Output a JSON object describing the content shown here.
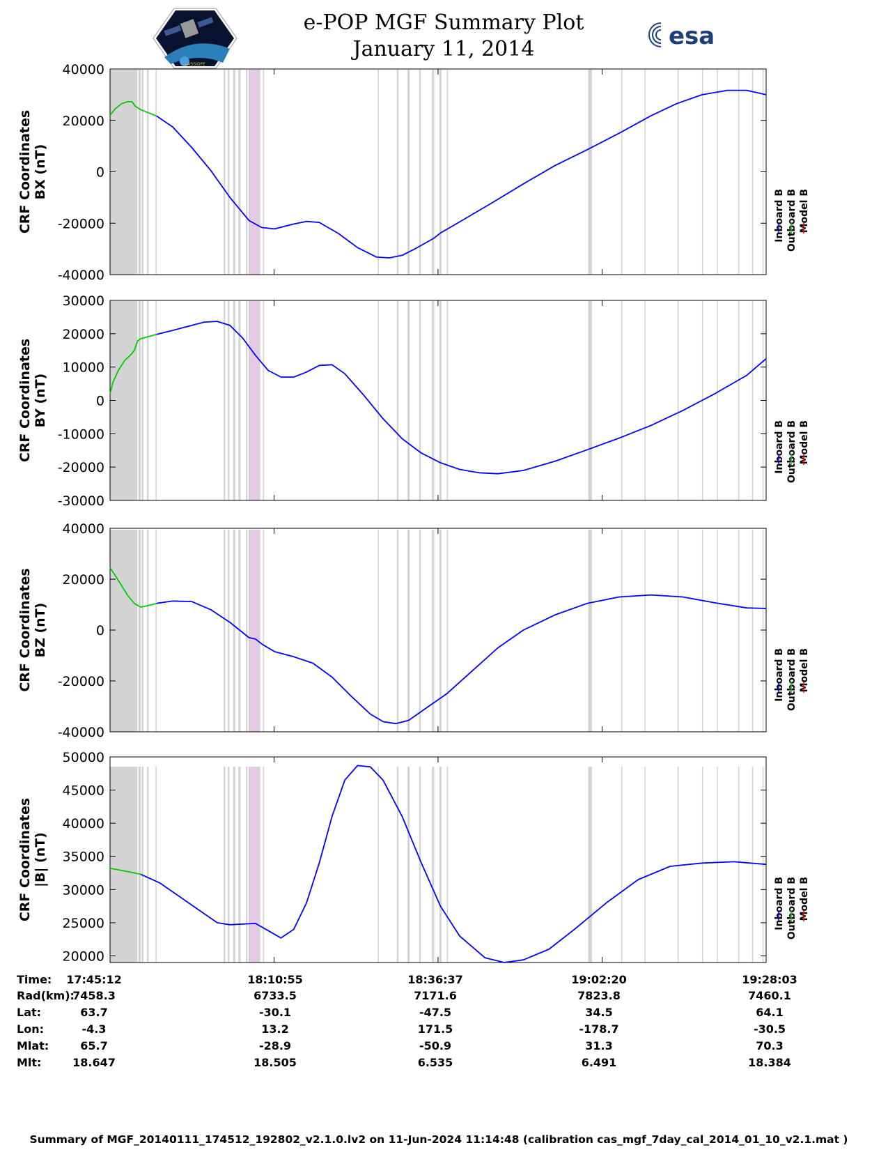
{
  "title": "e-POP MGF Summary Plot",
  "subtitle": "January 11, 2014",
  "logo_left_text": "CASSIOPE",
  "logo_right_text": "esa",
  "footer": "Summary of MGF_20140111_174512_192802_v2.1.0.lv2 on 11-Jun-2024 11:14:48 (calibration cas_mgf_7day_cal_2014_01_10_v2.1.mat )",
  "legend": [
    {
      "label": "Inboard B",
      "color": "#0000ff"
    },
    {
      "label": "Outboard B",
      "color": "#00cc00"
    },
    {
      "label": "Model B",
      "color": "#ff0000"
    }
  ],
  "colors": {
    "inboard": "#0000ff",
    "outboard": "#00cc00",
    "model": "#ff0000",
    "shade_gray": "#d3d3d3",
    "shade_pink": "#e8c8e8"
  },
  "table": {
    "row_labels": [
      "Time:",
      "Rad(km):",
      "Lat:",
      "Lon:",
      "Mlat:",
      "Mlt:"
    ],
    "columns": [
      [
        "17:45:12",
        "7458.3",
        "63.7",
        "-4.3",
        "65.7",
        "18.647"
      ],
      [
        "18:10:55",
        "6733.5",
        "-30.1",
        "13.2",
        "-28.9",
        "18.505"
      ],
      [
        "18:36:37",
        "7171.6",
        "-47.5",
        "171.5",
        "-50.9",
        "6.535"
      ],
      [
        "19:02:20",
        "7823.8",
        "34.5",
        "-178.7",
        "31.3",
        "6.491"
      ],
      [
        "19:28:03",
        "7460.1",
        "64.1",
        "-30.5",
        "70.3",
        "18.384"
      ]
    ]
  },
  "chart_data": {
    "type": "line",
    "x_unit": "time",
    "x_range": [
      "17:45:12",
      "19:28:03"
    ],
    "x_ticks": [
      "17:45:12",
      "18:10:55",
      "18:36:37",
      "19:02:20",
      "19:28:03"
    ],
    "shaded_intervals_gray": [
      [
        "17:45:12",
        "17:49:30"
      ],
      [
        "17:49:40",
        "17:50:00"
      ],
      [
        "17:50:10",
        "17:50:25"
      ],
      [
        "17:51:00",
        "17:51:15"
      ],
      [
        "17:52:20",
        "17:52:30"
      ],
      [
        "18:03:00",
        "18:03:15"
      ],
      [
        "18:03:40",
        "18:03:55"
      ],
      [
        "18:04:30",
        "18:04:50"
      ],
      [
        "18:05:20",
        "18:05:40"
      ],
      [
        "18:06:30",
        "18:06:45"
      ],
      [
        "18:07:50",
        "18:08:00"
      ],
      [
        "18:09:10",
        "18:09:20"
      ],
      [
        "18:27:10",
        "18:27:20"
      ],
      [
        "18:30:10",
        "18:30:25"
      ],
      [
        "18:31:50",
        "18:32:10"
      ],
      [
        "18:33:40",
        "18:33:55"
      ],
      [
        "18:35:40",
        "18:36:00"
      ],
      [
        "18:36:50",
        "18:37:10"
      ],
      [
        "18:38:00",
        "18:38:10"
      ],
      [
        "19:00:10",
        "19:00:45"
      ],
      [
        "19:05:20",
        "19:05:30"
      ],
      [
        "19:09:00",
        "19:09:10"
      ],
      [
        "19:14:10",
        "19:14:20"
      ],
      [
        "19:18:00",
        "19:18:10"
      ],
      [
        "19:20:20",
        "19:20:30"
      ],
      [
        "19:23:40",
        "19:23:50"
      ],
      [
        "19:25:50",
        "19:26:00"
      ],
      [
        "19:27:30",
        "19:27:40"
      ]
    ],
    "shaded_intervals_pink": [
      [
        "18:06:55",
        "18:08:45"
      ]
    ],
    "panels": [
      {
        "ylabel": "CRF Coordinates\nBX (nT)",
        "ylim": [
          -40000,
          40000
        ],
        "yticks": [
          -40000,
          -20000,
          0,
          20000,
          40000
        ],
        "series": [
          {
            "name": "Outboard B",
            "color": "#00cc00",
            "points": [
              [
                "17:45:12",
                22000
              ],
              [
                "17:46:00",
                24500
              ],
              [
                "17:47:00",
                26500
              ],
              [
                "17:48:00",
                27300
              ],
              [
                "17:48:40",
                27200
              ],
              [
                "17:49:10",
                25500
              ],
              [
                "17:50:00",
                24200
              ],
              [
                "17:51:00",
                23200
              ],
              [
                "17:52:30",
                21700
              ]
            ]
          },
          {
            "name": "Inboard B",
            "color": "#0000ff",
            "points": [
              [
                "17:52:30",
                21700
              ],
              [
                "17:55:00",
                17500
              ],
              [
                "17:58:00",
                9500
              ],
              [
                "18:01:00",
                500
              ],
              [
                "18:04:00",
                -10000
              ],
              [
                "18:07:00",
                -19000
              ],
              [
                "18:09:00",
                -21700
              ],
              [
                "18:11:00",
                -22200
              ],
              [
                "18:14:00",
                -20300
              ],
              [
                "18:16:00",
                -19300
              ],
              [
                "18:18:00",
                -19700
              ],
              [
                "18:21:00",
                -24000
              ],
              [
                "18:24:00",
                -29500
              ],
              [
                "18:27:00",
                -33200
              ],
              [
                "18:29:00",
                -33500
              ],
              [
                "18:31:00",
                -32500
              ],
              [
                "18:33:00",
                -30000
              ],
              [
                "18:36:00",
                -25800
              ],
              [
                "18:37:00",
                -23800
              ],
              [
                "18:40:00",
                -19500
              ],
              [
                "18:45:00",
                -12200
              ],
              [
                "18:50:00",
                -4700
              ],
              [
                "18:55:00",
                2500
              ],
              [
                "19:00:00",
                8600
              ],
              [
                "19:05:00",
                15000
              ],
              [
                "19:10:00",
                21800
              ],
              [
                "19:14:00",
                26500
              ],
              [
                "19:18:00",
                30000
              ],
              [
                "19:22:00",
                31700
              ],
              [
                "19:25:00",
                31700
              ],
              [
                "19:28:03",
                30000
              ]
            ]
          }
        ]
      },
      {
        "ylabel": "CRF Coordinates\nBY (nT)",
        "ylim": [
          -30000,
          30000
        ],
        "yticks": [
          -30000,
          -20000,
          -10000,
          0,
          10000,
          20000,
          30000
        ],
        "series": [
          {
            "name": "Outboard B",
            "color": "#00cc00",
            "points": [
              [
                "17:45:12",
                2000
              ],
              [
                "17:45:40",
                5500
              ],
              [
                "17:46:30",
                9000
              ],
              [
                "17:47:30",
                12000
              ],
              [
                "17:48:30",
                13800
              ],
              [
                "17:49:00",
                15000
              ],
              [
                "17:49:30",
                17800
              ],
              [
                "17:50:00",
                18500
              ],
              [
                "17:51:30",
                19300
              ],
              [
                "17:52:30",
                19800
              ]
            ]
          },
          {
            "name": "Inboard B",
            "color": "#0000ff",
            "points": [
              [
                "17:52:30",
                19800
              ],
              [
                "17:55:00",
                21000
              ],
              [
                "17:58:00",
                22500
              ],
              [
                "18:00:00",
                23500
              ],
              [
                "18:02:00",
                23700
              ],
              [
                "18:04:00",
                22500
              ],
              [
                "18:06:00",
                18700
              ],
              [
                "18:08:00",
                13500
              ],
              [
                "18:10:00",
                9000
              ],
              [
                "18:12:00",
                7000
              ],
              [
                "18:14:00",
                7000
              ],
              [
                "18:16:00",
                8500
              ],
              [
                "18:18:00",
                10500
              ],
              [
                "18:20:00",
                10700
              ],
              [
                "18:22:00",
                8000
              ],
              [
                "18:25:00",
                1500
              ],
              [
                "18:28:00",
                -5500
              ],
              [
                "18:31:00",
                -11500
              ],
              [
                "18:34:00",
                -15800
              ],
              [
                "18:37:00",
                -18700
              ],
              [
                "18:40:00",
                -20700
              ],
              [
                "18:43:00",
                -21700
              ],
              [
                "18:46:00",
                -22000
              ],
              [
                "18:50:00",
                -21000
              ],
              [
                "18:55:00",
                -18200
              ],
              [
                "19:00:00",
                -14800
              ],
              [
                "19:05:00",
                -11300
              ],
              [
                "19:10:00",
                -7500
              ],
              [
                "19:15:00",
                -3000
              ],
              [
                "19:20:00",
                2000
              ],
              [
                "19:25:00",
                7500
              ],
              [
                "19:28:03",
                12500
              ]
            ]
          }
        ]
      },
      {
        "ylabel": "CRF Coordinates\nBZ (nT)",
        "ylim": [
          -40000,
          40000
        ],
        "yticks": [
          -40000,
          -20000,
          0,
          20000,
          40000
        ],
        "series": [
          {
            "name": "Outboard B",
            "color": "#00cc00",
            "points": [
              [
                "17:45:12",
                24500
              ],
              [
                "17:46:00",
                21500
              ],
              [
                "17:47:00",
                17500
              ],
              [
                "17:48:00",
                13500
              ],
              [
                "17:49:00",
                10500
              ],
              [
                "17:50:00",
                9000
              ],
              [
                "17:51:00",
                9500
              ],
              [
                "17:52:30",
                10500
              ]
            ]
          },
          {
            "name": "Inboard B",
            "color": "#0000ff",
            "points": [
              [
                "17:52:30",
                10500
              ],
              [
                "17:55:00",
                11400
              ],
              [
                "17:58:00",
                11200
              ],
              [
                "18:01:00",
                8000
              ],
              [
                "18:04:00",
                3000
              ],
              [
                "18:07:00",
                -3000
              ],
              [
                "18:08:00",
                -3500
              ],
              [
                "18:09:00",
                -5500
              ],
              [
                "18:11:00",
                -8500
              ],
              [
                "18:14:00",
                -10500
              ],
              [
                "18:17:00",
                -13000
              ],
              [
                "18:20:00",
                -18500
              ],
              [
                "18:23:00",
                -26000
              ],
              [
                "18:26:00",
                -33000
              ],
              [
                "18:28:00",
                -36000
              ],
              [
                "18:30:00",
                -36800
              ],
              [
                "18:32:00",
                -35500
              ],
              [
                "18:34:00",
                -32000
              ],
              [
                "18:36:00",
                -28500
              ],
              [
                "18:38:00",
                -25000
              ],
              [
                "18:42:00",
                -16000
              ],
              [
                "18:46:00",
                -7000
              ],
              [
                "18:50:00",
                0
              ],
              [
                "18:55:00",
                6000
              ],
              [
                "19:00:00",
                10500
              ],
              [
                "19:05:00",
                13000
              ],
              [
                "19:10:00",
                13800
              ],
              [
                "19:15:00",
                13000
              ],
              [
                "19:20:00",
                10700
              ],
              [
                "19:25:00",
                8700
              ],
              [
                "19:28:03",
                8500
              ]
            ]
          }
        ]
      },
      {
        "ylabel": "CRF Coordinates\n|B| (nT)",
        "ylim": [
          19000,
          50000
        ],
        "yticks": [
          20000,
          25000,
          30000,
          35000,
          40000,
          45000,
          50000
        ],
        "series": [
          {
            "name": "Outboard B",
            "color": "#00cc00",
            "points": [
              [
                "17:45:12",
                33200
              ],
              [
                "17:47:00",
                32900
              ],
              [
                "17:49:00",
                32500
              ],
              [
                "17:50:00",
                32300
              ]
            ]
          },
          {
            "name": "Inboard B",
            "color": "#0000ff",
            "points": [
              [
                "17:50:00",
                32300
              ],
              [
                "17:53:00",
                31000
              ],
              [
                "17:56:00",
                29000
              ],
              [
                "17:59:00",
                27000
              ],
              [
                "18:02:00",
                25000
              ],
              [
                "18:04:00",
                24700
              ],
              [
                "18:06:00",
                24800
              ],
              [
                "18:08:00",
                24900
              ],
              [
                "18:10:00",
                23800
              ],
              [
                "18:12:00",
                22700
              ],
              [
                "18:14:00",
                24000
              ],
              [
                "18:16:00",
                28000
              ],
              [
                "18:18:00",
                34000
              ],
              [
                "18:20:00",
                41000
              ],
              [
                "18:22:00",
                46500
              ],
              [
                "18:24:00",
                48700
              ],
              [
                "18:26:00",
                48500
              ],
              [
                "18:28:00",
                46500
              ],
              [
                "18:31:00",
                41000
              ],
              [
                "18:34:00",
                34000
              ],
              [
                "18:37:00",
                27500
              ],
              [
                "18:40:00",
                23000
              ],
              [
                "18:44:00",
                19700
              ],
              [
                "18:47:00",
                19000
              ],
              [
                "18:50:00",
                19400
              ],
              [
                "18:54:00",
                21000
              ],
              [
                "18:58:00",
                24000
              ],
              [
                "19:03:00",
                28000
              ],
              [
                "19:08:00",
                31500
              ],
              [
                "19:13:00",
                33500
              ],
              [
                "19:18:00",
                34000
              ],
              [
                "19:23:00",
                34200
              ],
              [
                "19:28:03",
                33800
              ]
            ]
          }
        ]
      }
    ]
  }
}
